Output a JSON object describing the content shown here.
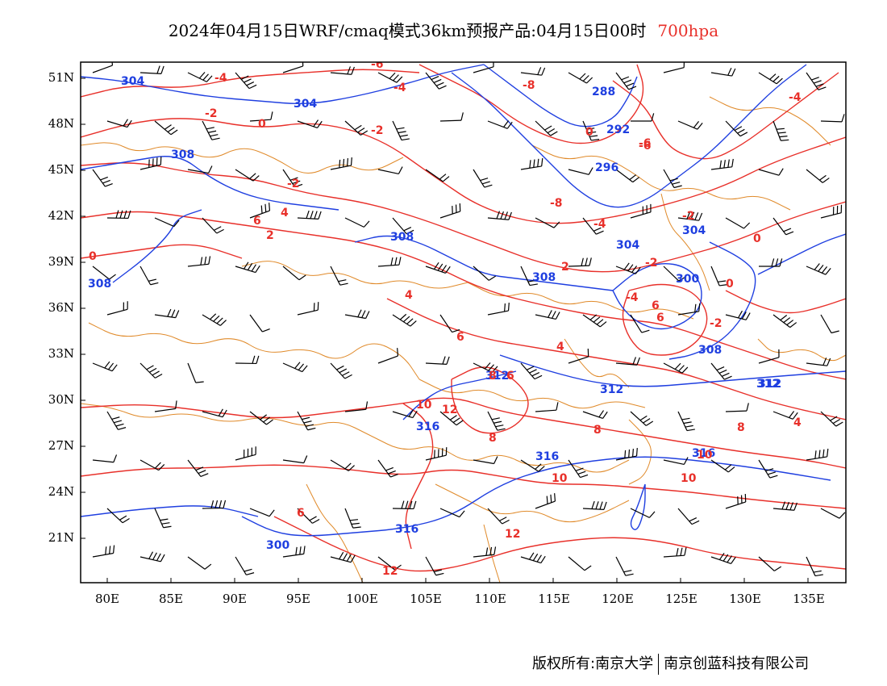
{
  "title": {
    "main": "2024年04月15日WRF/cmaq模式36km预报产品:04月15日00时",
    "level": "700hpa"
  },
  "colors": {
    "height_contour": "#1f3fe0",
    "temp_contour": "#e8302a",
    "boundary": "#e08a2a",
    "wind_barb": "#000000",
    "level_text": "#e8302a"
  },
  "lat_labels": [
    "51N",
    "48N",
    "45N",
    "42N",
    "39N",
    "36N",
    "33N",
    "30N",
    "27N",
    "24N",
    "21N"
  ],
  "lon_labels": [
    "80E",
    "85E",
    "90E",
    "95E",
    "100E",
    "105E",
    "110E",
    "115E",
    "120E",
    "125E",
    "130E",
    "135E"
  ],
  "height_labels": [
    "304",
    "304",
    "308",
    "308",
    "308",
    "308",
    "312",
    "312",
    "312",
    "316",
    "316",
    "316",
    "300",
    "300",
    "304",
    "296",
    "292",
    "288",
    "304",
    "308",
    "312",
    "316"
  ],
  "temp_labels": [
    "-4",
    "-4",
    "-2",
    "0",
    "-2",
    "-6",
    "-8",
    "-8",
    "0",
    "-6",
    "-2",
    "4",
    "6",
    "2",
    "0",
    "-2",
    "-4",
    "6",
    "6",
    "-2",
    "2",
    "0",
    "4",
    "4",
    "6",
    "8",
    "6",
    "8",
    "10",
    "12",
    "8",
    "10",
    "10",
    "12",
    "4",
    "8",
    "10",
    "12",
    "6",
    "-4",
    "-6",
    "-2",
    "0",
    "-4"
  ],
  "footer": {
    "left": "版权所有:南京大学",
    "right": "南京创蓝科技有限公司"
  }
}
